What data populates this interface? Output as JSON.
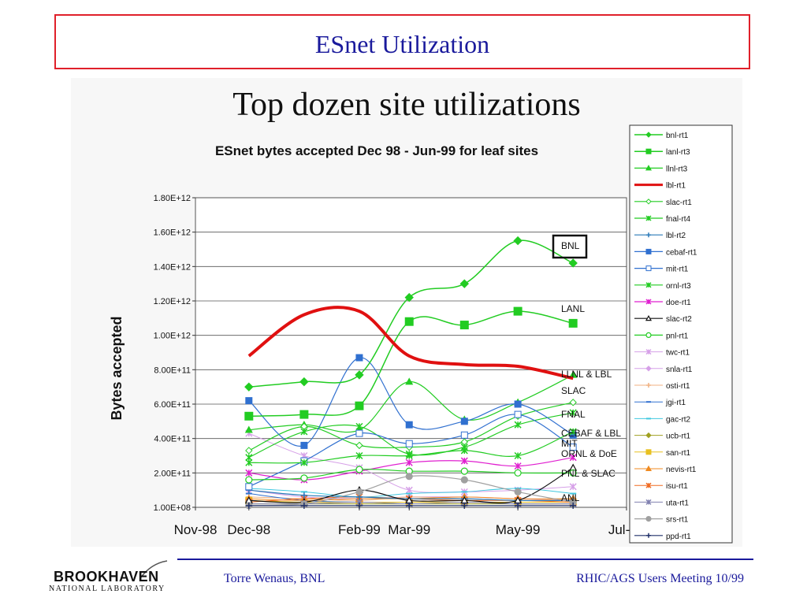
{
  "slide": {
    "title": "ESnet Utilization",
    "footer_left": "Torre Wenaus, BNL",
    "footer_right": "RHIC/AGS Users Meeting 10/99",
    "logo_top": "BROOKHAVEN",
    "logo_bottom": "NATIONAL LABORATORY",
    "title_color": "#1a1a9c",
    "border_color": "#e0202a"
  },
  "chart_data": {
    "type": "line",
    "heading": "Top dozen site utilizations",
    "title": "ESnet bytes accepted Dec 98 - Jun-99 for leaf sites",
    "ylabel": "Bytes accepted",
    "xlabel": "",
    "x_tick_labels": [
      "Nov-98",
      "Dec-98",
      "Feb-99",
      "Mar-99",
      "May-99",
      "Jul-99"
    ],
    "x_ticks": [
      "1998-11-01",
      "1998-12-01",
      "1999-02-01",
      "1999-03-01",
      "1999-05-01",
      "1999-07-01"
    ],
    "y_tick_labels": [
      "1.00E+08",
      "2.00E+11",
      "4.00E+11",
      "6.00E+11",
      "8.00E+11",
      "1.00E+12",
      "1.20E+12",
      "1.40E+12",
      "1.60E+12",
      "1.80E+12"
    ],
    "y_ticks": [
      100000000,
      200000000000,
      400000000000,
      600000000000,
      800000000000,
      1000000000000,
      1200000000000,
      1400000000000,
      1600000000000,
      1800000000000
    ],
    "ylim": [
      0,
      1800000000000
    ],
    "xlim": [
      "1998-11-01",
      "1999-07-01"
    ],
    "grid": "horizontal",
    "legend_position": "right",
    "x": [
      "1998-12-01",
      "1999-01-01",
      "1999-02-01",
      "1999-03-01",
      "1999-04-01",
      "1999-05-01",
      "1999-06-01"
    ],
    "series": [
      {
        "name": "bnl-rt1",
        "color": "#22cc22",
        "marker": "diamond",
        "width": 1.5,
        "values": [
          700000000000,
          730000000000,
          770000000000,
          1220000000000,
          1300000000000,
          1550000000000,
          1420000000000
        ]
      },
      {
        "name": "lanl-rt3",
        "color": "#22cc22",
        "marker": "square",
        "width": 1.5,
        "values": [
          530000000000,
          540000000000,
          590000000000,
          1080000000000,
          1060000000000,
          1140000000000,
          1070000000000
        ]
      },
      {
        "name": "llnl-rt3",
        "color": "#22cc22",
        "marker": "triangle",
        "width": 1.2,
        "values": [
          450000000000,
          480000000000,
          450000000000,
          730000000000,
          510000000000,
          610000000000,
          770000000000
        ]
      },
      {
        "name": "lbl-rt1",
        "color": "#e01010",
        "marker": "none",
        "width": 4,
        "values": [
          880000000000,
          1120000000000,
          1140000000000,
          880000000000,
          830000000000,
          820000000000,
          750000000000
        ]
      },
      {
        "name": "slac-rt1",
        "color": "#22cc22",
        "marker": "diamond-open",
        "width": 1.2,
        "values": [
          330000000000,
          470000000000,
          360000000000,
          350000000000,
          380000000000,
          530000000000,
          610000000000
        ]
      },
      {
        "name": "fnal-rt4",
        "color": "#22cc22",
        "marker": "star",
        "width": 1.2,
        "values": [
          290000000000,
          440000000000,
          470000000000,
          310000000000,
          350000000000,
          480000000000,
          550000000000
        ]
      },
      {
        "name": "lbl-rt2",
        "color": "#2a7ab8",
        "marker": "plus",
        "width": 1.2,
        "values": [
          100000000000,
          70000000000,
          60000000000,
          50000000000,
          50000000000,
          40000000000,
          40000000000
        ]
      },
      {
        "name": "cebaf-rt1",
        "color": "#3070d0",
        "marker": "square",
        "width": 1.2,
        "values": [
          620000000000,
          360000000000,
          870000000000,
          480000000000,
          500000000000,
          600000000000,
          420000000000
        ]
      },
      {
        "name": "mit-rt1",
        "color": "#3070d0",
        "marker": "square-open",
        "width": 1.2,
        "values": [
          120000000000,
          270000000000,
          430000000000,
          370000000000,
          420000000000,
          540000000000,
          350000000000
        ]
      },
      {
        "name": "ornl-rt3",
        "color": "#22cc22",
        "marker": "star",
        "width": 1.2,
        "values": [
          260000000000,
          260000000000,
          300000000000,
          300000000000,
          330000000000,
          300000000000,
          440000000000
        ]
      },
      {
        "name": "doe-rt1",
        "color": "#e020d0",
        "marker": "star",
        "width": 1.2,
        "values": [
          200000000000,
          160000000000,
          210000000000,
          260000000000,
          270000000000,
          240000000000,
          290000000000
        ]
      },
      {
        "name": "slac-rt2",
        "color": "#111111",
        "marker": "triangle-open",
        "width": 1.2,
        "values": [
          40000000000,
          30000000000,
          100000000000,
          40000000000,
          40000000000,
          40000000000,
          230000000000
        ]
      },
      {
        "name": "pnl-rt1",
        "color": "#22cc22",
        "marker": "circle-open",
        "width": 1.2,
        "values": [
          160000000000,
          170000000000,
          220000000000,
          210000000000,
          210000000000,
          200000000000,
          200000000000
        ]
      },
      {
        "name": "twc-rt1",
        "color": "#d6a0e8",
        "marker": "star",
        "width": 1,
        "values": [
          430000000000,
          300000000000,
          230000000000,
          100000000000,
          90000000000,
          100000000000,
          120000000000
        ]
      },
      {
        "name": "snla-rt1",
        "color": "#d6a0e8",
        "marker": "diamond",
        "width": 1,
        "values": [
          100000000000,
          60000000000,
          50000000000,
          60000000000,
          60000000000,
          50000000000,
          40000000000
        ]
      },
      {
        "name": "osti-rt1",
        "color": "#f0b080",
        "marker": "plus",
        "width": 1,
        "values": [
          60000000000,
          50000000000,
          40000000000,
          60000000000,
          50000000000,
          40000000000,
          50000000000
        ]
      },
      {
        "name": "jgi-rt1",
        "color": "#3070d0",
        "marker": "dash",
        "width": 1,
        "values": [
          80000000000,
          40000000000,
          30000000000,
          30000000000,
          30000000000,
          30000000000,
          30000000000
        ]
      },
      {
        "name": "gac-rt2",
        "color": "#40c8e0",
        "marker": "dash",
        "width": 1,
        "values": [
          110000000000,
          90000000000,
          60000000000,
          80000000000,
          90000000000,
          110000000000,
          80000000000
        ]
      },
      {
        "name": "ucb-rt1",
        "color": "#a0a020",
        "marker": "diamond",
        "width": 1,
        "values": [
          20000000000,
          20000000000,
          20000000000,
          20000000000,
          20000000000,
          20000000000,
          20000000000
        ]
      },
      {
        "name": "san-rt1",
        "color": "#e8c020",
        "marker": "square",
        "width": 1,
        "values": [
          40000000000,
          30000000000,
          30000000000,
          30000000000,
          30000000000,
          30000000000,
          30000000000
        ]
      },
      {
        "name": "nevis-rt1",
        "color": "#f08a20",
        "marker": "triangle",
        "width": 1,
        "values": [
          50000000000,
          40000000000,
          50000000000,
          50000000000,
          60000000000,
          50000000000,
          50000000000
        ]
      },
      {
        "name": "isu-rt1",
        "color": "#f06a20",
        "marker": "star",
        "width": 1,
        "values": [
          30000000000,
          50000000000,
          60000000000,
          50000000000,
          40000000000,
          40000000000,
          30000000000
        ]
      },
      {
        "name": "uta-rt1",
        "color": "#8080b0",
        "marker": "star",
        "width": 1,
        "values": [
          20000000000,
          20000000000,
          30000000000,
          20000000000,
          30000000000,
          20000000000,
          20000000000
        ]
      },
      {
        "name": "srs-rt1",
        "color": "#a0a0a0",
        "marker": "circle",
        "width": 1.2,
        "values": [
          10000000000,
          20000000000,
          90000000000,
          180000000000,
          160000000000,
          90000000000,
          30000000000
        ]
      },
      {
        "name": "ppd-rt1",
        "color": "#20306a",
        "marker": "plus",
        "width": 1.2,
        "values": [
          10000000000,
          10000000000,
          10000000000,
          10000000000,
          10000000000,
          10000000000,
          10000000000
        ]
      }
    ],
    "annotations": [
      "BNL",
      "LANL",
      "LLNL & LBL",
      "SLAC",
      "FNAL",
      "CEBAF & LBL",
      "MIT",
      "ORNL & DoE",
      "PNL & SLAC",
      "ANL"
    ]
  }
}
